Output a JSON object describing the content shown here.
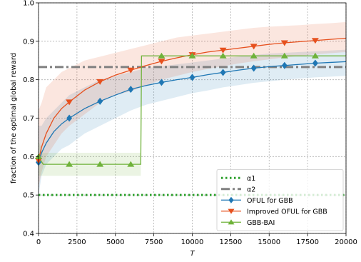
{
  "chart_data": {
    "type": "line",
    "xlabel": "T",
    "ylabel": "fraction of the optimal global reward",
    "xlim": [
      0,
      20000
    ],
    "ylim": [
      0.4,
      1.0
    ],
    "x_ticks": [
      0,
      2500,
      5000,
      7500,
      10000,
      12500,
      15000,
      17500,
      20000
    ],
    "x_tick_labels": [
      "0",
      "2500",
      "5000",
      "7500",
      "10000",
      "12500",
      "15000",
      "17500",
      "20000"
    ],
    "y_ticks": [
      0.4,
      0.5,
      0.6,
      0.7,
      0.8,
      0.9,
      1.0
    ],
    "y_tick_labels": [
      "0.4",
      "0.5",
      "0.6",
      "0.7",
      "0.8",
      "0.9",
      "1.0"
    ],
    "grid": true,
    "legend_position": "lower-right",
    "series": [
      {
        "name": "α1",
        "style": "dotted",
        "color": "#2ca02c",
        "marker": "none",
        "x": [
          0,
          20000
        ],
        "y": [
          0.5,
          0.5
        ]
      },
      {
        "name": "α2",
        "style": "dash-dot",
        "color": "#808080",
        "marker": "none",
        "x": [
          0,
          20000
        ],
        "y": [
          0.833,
          0.833
        ]
      },
      {
        "name": "OFUL for GBB",
        "style": "solid",
        "color": "#1f77b4",
        "marker": "diamond",
        "x": [
          0,
          200,
          500,
          1000,
          1500,
          2000,
          3000,
          4000,
          5000,
          6000,
          7000,
          8000,
          9000,
          10000,
          11000,
          12000,
          13000,
          14000,
          15000,
          16000,
          17000,
          18000,
          19000,
          20000
        ],
        "y": [
          0.585,
          0.61,
          0.635,
          0.665,
          0.685,
          0.7,
          0.725,
          0.744,
          0.76,
          0.775,
          0.785,
          0.793,
          0.8,
          0.806,
          0.813,
          0.819,
          0.825,
          0.83,
          0.834,
          0.837,
          0.84,
          0.843,
          0.845,
          0.847
        ],
        "band_lower": [
          0.5,
          0.55,
          0.58,
          0.6,
          0.62,
          0.63,
          0.66,
          0.68,
          0.7,
          0.72,
          0.735,
          0.745,
          0.755,
          0.765,
          0.772,
          0.78,
          0.786,
          0.792,
          0.796,
          0.8,
          0.803,
          0.806,
          0.808,
          0.81
        ],
        "band_upper": [
          0.68,
          0.68,
          0.7,
          0.72,
          0.74,
          0.76,
          0.78,
          0.8,
          0.81,
          0.82,
          0.83,
          0.835,
          0.84,
          0.845,
          0.85,
          0.855,
          0.86,
          0.864,
          0.868,
          0.87,
          0.872,
          0.874,
          0.876,
          0.878
        ],
        "markers_at": [
          0,
          2000,
          4000,
          6000,
          8000,
          10000,
          12000,
          14000,
          16000,
          18000
        ]
      },
      {
        "name": "Improved OFUL for GBB",
        "style": "solid",
        "color": "#e6501e",
        "marker": "triangle-down",
        "x": [
          0,
          200,
          500,
          1000,
          1500,
          2000,
          3000,
          4000,
          5000,
          6000,
          7000,
          8000,
          9000,
          10000,
          11000,
          12000,
          13000,
          14000,
          15000,
          16000,
          17000,
          18000,
          19000,
          20000
        ],
        "y": [
          0.59,
          0.625,
          0.66,
          0.7,
          0.725,
          0.742,
          0.773,
          0.795,
          0.812,
          0.825,
          0.837,
          0.848,
          0.857,
          0.865,
          0.872,
          0.877,
          0.882,
          0.887,
          0.892,
          0.896,
          0.899,
          0.902,
          0.905,
          0.908
        ],
        "band_lower": [
          0.52,
          0.56,
          0.6,
          0.63,
          0.66,
          0.68,
          0.71,
          0.74,
          0.76,
          0.77,
          0.785,
          0.8,
          0.81,
          0.82,
          0.828,
          0.835,
          0.842,
          0.848,
          0.853,
          0.858,
          0.862,
          0.866,
          0.869,
          0.872
        ],
        "band_upper": [
          0.72,
          0.74,
          0.78,
          0.8,
          0.82,
          0.83,
          0.85,
          0.86,
          0.87,
          0.88,
          0.89,
          0.9,
          0.91,
          0.915,
          0.92,
          0.925,
          0.93,
          0.935,
          0.938,
          0.94,
          0.942,
          0.945,
          0.947,
          0.95
        ],
        "markers_at": [
          0,
          2000,
          4000,
          6000,
          8000,
          10000,
          12000,
          14000,
          16000,
          18000
        ]
      },
      {
        "name": "GBB-BAI",
        "style": "solid",
        "color": "#6fb23a",
        "marker": "triangle-up",
        "x": [
          0,
          300,
          6650,
          6700,
          20000
        ],
        "y": [
          0.6,
          0.58,
          0.58,
          0.862,
          0.862
        ],
        "band_lower": [
          0.55,
          0.55,
          0.55,
          0.862,
          0.862
        ],
        "band_upper": [
          0.64,
          0.61,
          0.61,
          0.862,
          0.862
        ],
        "markers_at": [
          0,
          2000,
          4000,
          6000,
          8000,
          10000,
          12000,
          14000,
          16000,
          18000
        ]
      }
    ]
  }
}
